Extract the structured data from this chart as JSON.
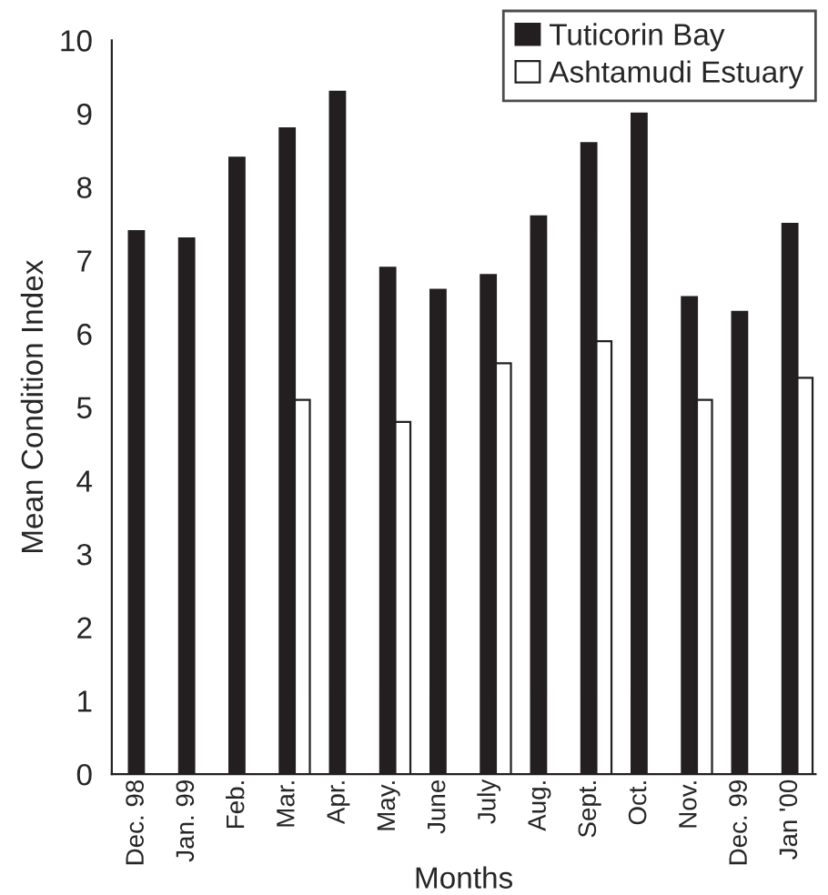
{
  "chart_data": {
    "type": "bar",
    "xlabel": "Months",
    "ylabel": "Mean Condition Index",
    "categories": [
      "Dec. 98",
      "Jan. 99",
      "Feb.",
      "Mar.",
      "Apr.",
      "May.",
      "June",
      "July",
      "Aug.",
      "Sept.",
      "Oct.",
      "Nov.",
      "Dec. 99",
      "Jan '00"
    ],
    "series": [
      {
        "name": "Tuticorin Bay",
        "color": "#231f20",
        "values": [
          7.4,
          7.3,
          8.4,
          8.8,
          9.3,
          6.9,
          6.6,
          6.8,
          7.6,
          8.6,
          9.0,
          6.5,
          6.3,
          7.5
        ]
      },
      {
        "name": "Ashtamudi Estuary",
        "color": "#ffffff",
        "values": [
          null,
          null,
          null,
          5.1,
          null,
          4.8,
          null,
          5.6,
          null,
          5.9,
          null,
          5.1,
          null,
          5.4
        ]
      }
    ],
    "ylim": [
      0,
      10
    ],
    "yticks": [
      0,
      1,
      2,
      3,
      4,
      5,
      6,
      7,
      8,
      9,
      10
    ],
    "grid": false,
    "legend": "top right"
  }
}
